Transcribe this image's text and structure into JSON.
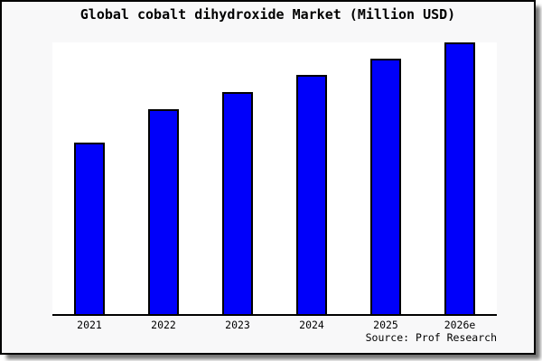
{
  "page": {
    "title": "Global cobalt dihydroxide Market (Million USD)",
    "source_note": "Source: Prof Research"
  },
  "chart_data": {
    "type": "bar",
    "title": "Global cobalt dihydroxide Market (Million USD)",
    "categories": [
      "2021",
      "2022",
      "2023",
      "2024",
      "2025",
      "2026e"
    ],
    "values": [
      190,
      227,
      246,
      265,
      283,
      301
    ],
    "value_scale": "relative (no y-axis ticks shown; values are proportional bar heights)",
    "xlabel": "",
    "ylabel": "",
    "ylim": [
      0,
      301
    ],
    "grid": false,
    "legend": false,
    "source_note": "Source: Prof Research"
  },
  "colors": {
    "bar_fill": "#0000fa",
    "bar_border": "#000000",
    "page_bg": "#f8f8f9",
    "plot_bg": "#ffffff",
    "axis": "#000000",
    "text": "#000000"
  }
}
